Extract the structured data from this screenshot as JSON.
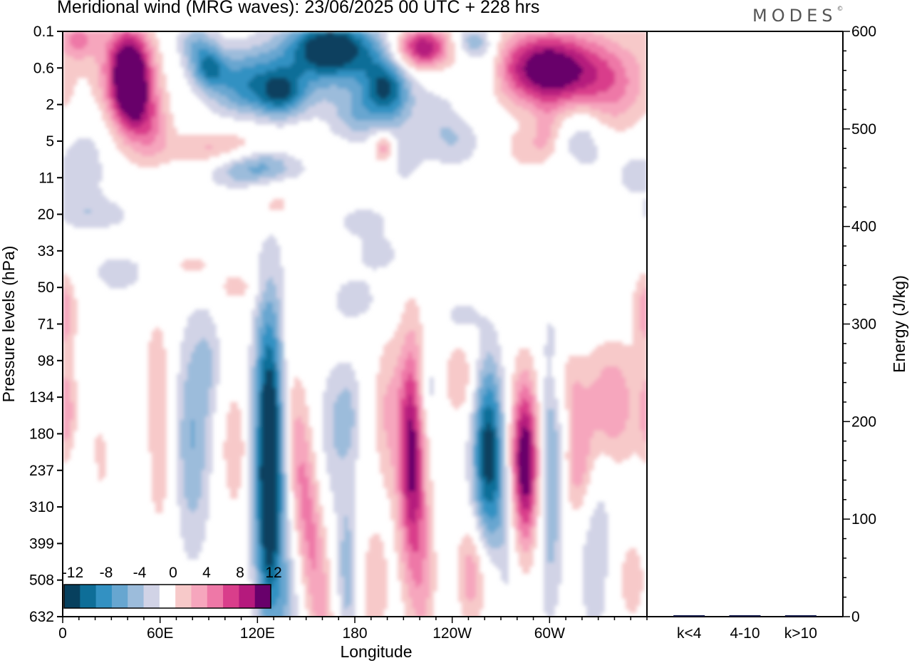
{
  "header": {
    "title": "Meridional wind (MRG waves):  23/06/2025  00 UTC  + 228 hrs",
    "brand": "MODES",
    "brand_mark": "©"
  },
  "chart_data": [
    {
      "type": "heatmap",
      "title": "Meridional wind (MRG waves):  23/06/2025  00 UTC  + 228 hrs",
      "xlabel": "Longitude",
      "ylabel": "Pressure levels (hPa)",
      "x_ticks": [
        "0",
        "60E",
        "120E",
        "180",
        "120W",
        "60W"
      ],
      "x_tick_degrees": [
        0,
        60,
        120,
        180,
        240,
        300
      ],
      "xlim": [
        0,
        360
      ],
      "y_ticks": [
        "0.1",
        "0.6",
        "2",
        "5",
        "11",
        "20",
        "33",
        "50",
        "71",
        "98",
        "134",
        "180",
        "237",
        "310",
        "399",
        "508",
        "632"
      ],
      "y_axis": "pressure levels, top to bottom, equally spaced model levels",
      "colorbar": {
        "labels": [
          "-12",
          "-8",
          "-4",
          "0",
          "4",
          "8",
          "12"
        ],
        "levels": [
          -14,
          -12,
          -10,
          -8,
          -6,
          -4,
          -2,
          2,
          4,
          6,
          8,
          10,
          12,
          14
        ],
        "colors": [
          "#07405e",
          "#0e6e98",
          "#3391c2",
          "#67a6d0",
          "#9cbcdb",
          "#d1d3e6",
          "#ffffff",
          "#f7c9c9",
          "#f6a6bd",
          "#ee78a7",
          "#d93e8b",
          "#b51a7d",
          "#68006b"
        ]
      },
      "features": [
        {
          "lon": 42,
          "lev": 1.6,
          "value": 14,
          "note": "strong positive upper-level maximum"
        },
        {
          "lon": 165,
          "lev": 0.5,
          "value": -14,
          "note": "strong negative upper-level band"
        },
        {
          "lon": 295,
          "lev": 1.0,
          "value": 12
        },
        {
          "lon": 220,
          "lev": 0.5,
          "value": 12
        },
        {
          "lon": 115,
          "lev": 6.3,
          "value": -6
        },
        {
          "lon": 128,
          "lev": 10.8,
          "value": -14,
          "note": "lower-level negative column"
        },
        {
          "lon": 215,
          "lev": 11.5,
          "value": 12
        },
        {
          "lon": 258,
          "lev": 12,
          "value": -12
        },
        {
          "lon": 285,
          "lev": 11.8,
          "value": 14
        }
      ]
    },
    {
      "type": "bar",
      "ylabel": "Energy (J/kg)",
      "categories": [
        "k<4",
        "4-10",
        "k>10"
      ],
      "values": [
        0.3,
        1.5,
        0.3
      ],
      "ylim": [
        0,
        600
      ],
      "y_ticks": [
        "0",
        "100",
        "200",
        "300",
        "400",
        "500",
        "600"
      ],
      "bar_color": "#0b1446"
    }
  ]
}
